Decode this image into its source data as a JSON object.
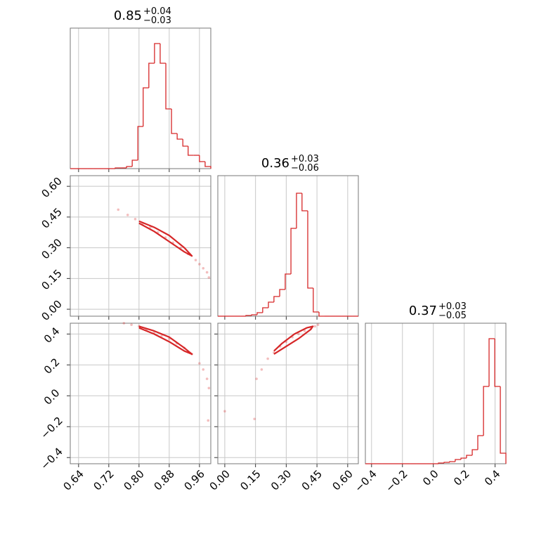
{
  "chart_data": {
    "type": "corner",
    "color": "#d62728",
    "grid": true,
    "params": [
      {
        "title": {
          "value": "0.85",
          "plus": "+0.04",
          "minus": "−0.03"
        },
        "lim": [
          0.618,
          0.99
        ],
        "ticks": [
          0.64,
          0.72,
          {
            "value": 0.8,
            "label": "0.80"
          },
          0.88,
          0.96
        ],
        "hist": {
          "ylim": [
            0,
            200
          ],
          "bins": [
            0.618,
            0.633,
            0.648,
            0.663,
            0.678,
            0.692,
            0.707,
            0.722,
            0.737,
            0.752,
            0.767,
            0.782,
            0.797,
            0.811,
            0.826,
            0.841,
            0.856,
            0.871,
            0.886,
            0.901,
            0.916,
            0.93,
            0.945,
            0.96,
            0.975,
            0.99
          ],
          "counts": [
            0,
            0,
            0,
            0,
            0,
            0,
            0,
            0,
            1,
            1,
            3,
            12,
            60,
            115,
            150,
            178,
            150,
            85,
            50,
            42,
            32,
            19,
            19,
            10,
            3
          ]
        }
      },
      {
        "title": {
          "value": "0.36",
          "plus": "+0.03",
          "minus": "−0.06"
        },
        "lim": [
          -0.034,
          0.652
        ],
        "ticks": [
          {
            "value": 0,
            "label": "0.00"
          },
          0.15,
          {
            "value": 0.3,
            "label": "0.30"
          },
          0.45,
          {
            "value": 0.6,
            "label": "0.60"
          }
        ],
        "hist": {
          "ylim": [
            0,
            200
          ],
          "bins": [
            -0.034,
            -0.007,
            0.021,
            0.048,
            0.076,
            0.103,
            0.131,
            0.158,
            0.185,
            0.213,
            0.24,
            0.268,
            0.295,
            0.323,
            0.35,
            0.377,
            0.405,
            0.432,
            0.46,
            0.487,
            0.514,
            0.542,
            0.569,
            0.597,
            0.624,
            0.652
          ],
          "counts": [
            0,
            0,
            0,
            0,
            0,
            1,
            2,
            5,
            12,
            20,
            28,
            38,
            60,
            125,
            175,
            150,
            40,
            6,
            0,
            0,
            0,
            0,
            0,
            0,
            0
          ]
        }
      },
      {
        "title": {
          "value": "0.37",
          "plus": "+0.03",
          "minus": "−0.05"
        },
        "lim": [
          -0.44,
          0.47
        ],
        "ticks": [
          {
            "value": -0.4,
            "label": "−0.4"
          },
          {
            "value": -0.2,
            "label": "−0.2"
          },
          {
            "value": 0,
            "label": "0.0"
          },
          0.2,
          0.4
        ],
        "hist": {
          "ylim": [
            0,
            200
          ],
          "bins": [
            -0.44,
            -0.404,
            -0.367,
            -0.331,
            -0.294,
            -0.258,
            -0.222,
            -0.185,
            -0.149,
            -0.112,
            -0.076,
            -0.04,
            -0.003,
            0.033,
            0.07,
            0.106,
            0.142,
            0.179,
            0.215,
            0.252,
            0.288,
            0.325,
            0.361,
            0.398,
            0.434,
            0.47
          ],
          "counts": [
            0,
            0,
            0,
            0,
            0,
            0,
            0,
            0,
            0,
            0,
            0,
            0,
            0,
            1,
            2,
            3,
            6,
            8,
            12,
            20,
            40,
            110,
            178,
            110,
            15
          ]
        }
      }
    ],
    "pairs": [
      {
        "points": {
          "x": [
            0.745,
            0.77,
            0.79,
            0.81,
            0.83,
            0.85,
            0.87,
            0.89,
            0.91,
            0.93,
            0.95,
            0.96,
            0.97,
            0.98,
            0.985
          ],
          "y": [
            0.486,
            0.46,
            0.44,
            0.42,
            0.4,
            0.375,
            0.35,
            0.325,
            0.3,
            0.27,
            0.24,
            0.22,
            0.2,
            0.18,
            0.155
          ]
        },
        "contour": {
          "x": [
            0.8,
            0.84,
            0.88,
            0.92,
            0.94,
            0.92,
            0.88,
            0.84,
            0.8
          ],
          "y": [
            0.43,
            0.4,
            0.36,
            0.3,
            0.26,
            0.28,
            0.33,
            0.38,
            0.42
          ]
        }
      },
      {
        "points": {
          "x": [
            0.76,
            0.78,
            0.8,
            0.82,
            0.84,
            0.86,
            0.88,
            0.9,
            0.92,
            0.94,
            0.96,
            0.97,
            0.98,
            0.985,
            0.983
          ],
          "y": [
            0.47,
            0.46,
            0.45,
            0.43,
            0.41,
            0.39,
            0.37,
            0.34,
            0.31,
            0.27,
            0.21,
            0.17,
            0.11,
            0.05,
            -0.16
          ]
        },
        "contour": {
          "x": [
            0.8,
            0.84,
            0.88,
            0.92,
            0.94,
            0.92,
            0.88,
            0.84,
            0.8
          ],
          "y": [
            0.45,
            0.42,
            0.38,
            0.31,
            0.27,
            0.29,
            0.35,
            0.4,
            0.44
          ]
        }
      },
      {
        "points": {
          "x": [
            0.0,
            0.145,
            0.155,
            0.18,
            0.21,
            0.24,
            0.27,
            0.3,
            0.33,
            0.36,
            0.39,
            0.42,
            0.44,
            0.455
          ],
          "y": [
            -0.1,
            -0.15,
            0.11,
            0.17,
            0.24,
            0.28,
            0.32,
            0.35,
            0.38,
            0.4,
            0.42,
            0.44,
            0.45,
            0.46
          ]
        },
        "contour": {
          "x": [
            0.24,
            0.3,
            0.36,
            0.42,
            0.43,
            0.4,
            0.34,
            0.28,
            0.24
          ],
          "y": [
            0.27,
            0.32,
            0.37,
            0.43,
            0.45,
            0.44,
            0.4,
            0.34,
            0.29
          ]
        }
      }
    ]
  }
}
